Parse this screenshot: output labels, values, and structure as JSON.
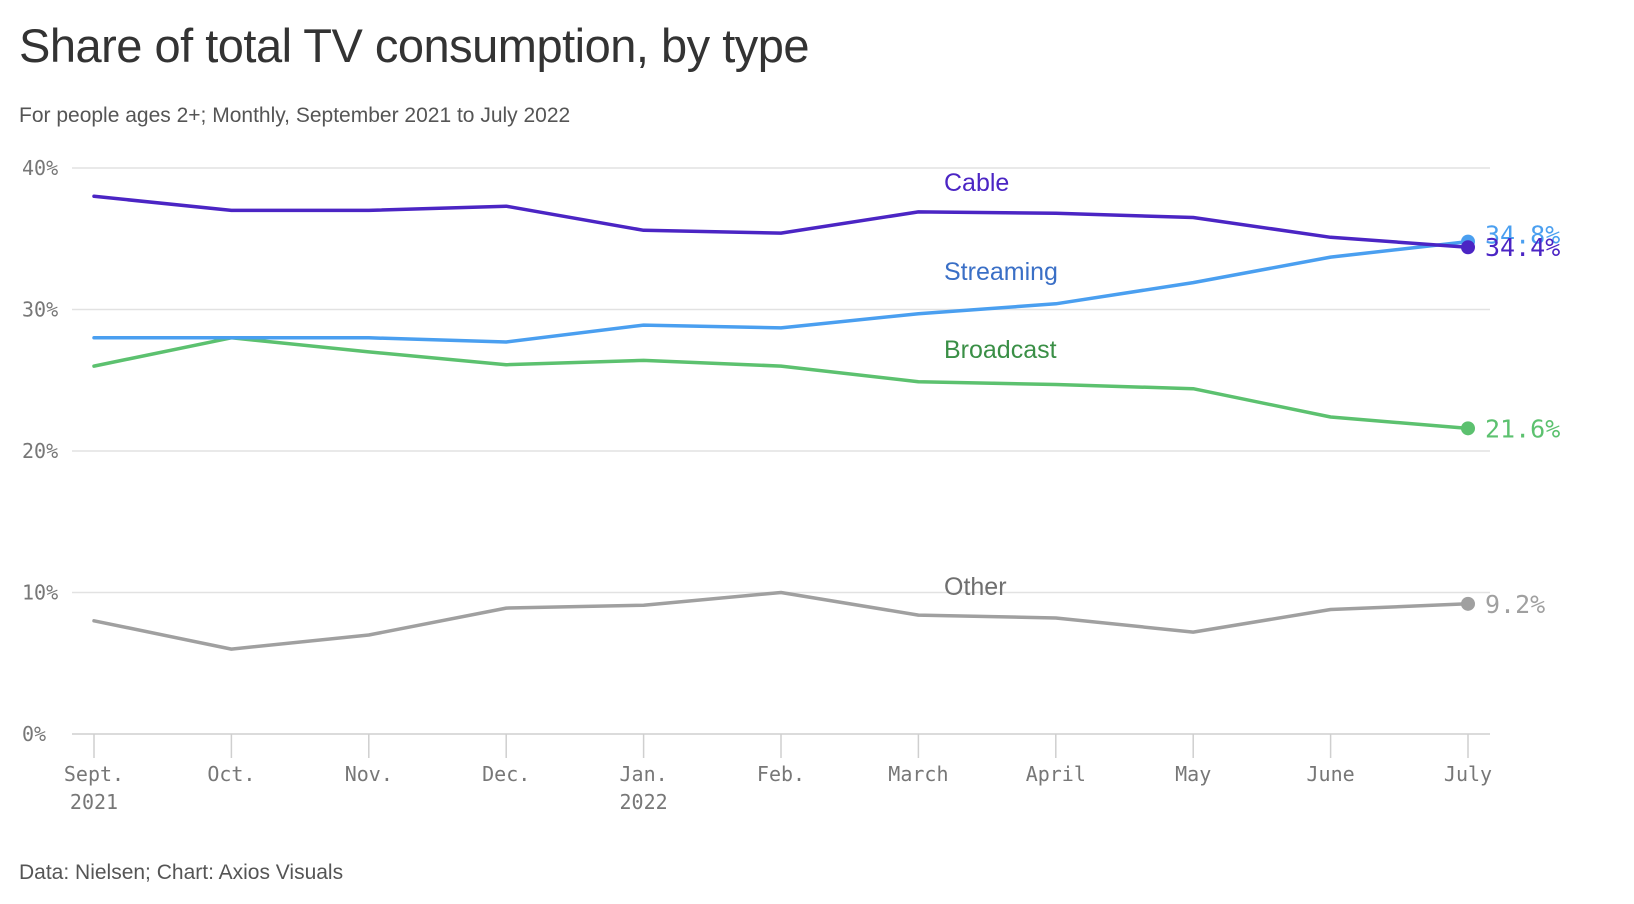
{
  "title": "Share of total TV consumption, by type",
  "subtitle": "For people ages 2+; Monthly, September 2021 to July 2022",
  "source": "Data: Nielsen; Chart: Axios Visuals",
  "chart_data": {
    "type": "line",
    "x": [
      "Sept. 2021",
      "Oct.",
      "Nov.",
      "Dec.",
      "Jan. 2022",
      "Feb.",
      "March",
      "April",
      "May",
      "June",
      "July"
    ],
    "x_tick_lines": [
      [
        "Sept.",
        "2021"
      ],
      [
        "Oct."
      ],
      [
        "Nov."
      ],
      [
        "Dec."
      ],
      [
        "Jan.",
        "2022"
      ],
      [
        "Feb."
      ],
      [
        "March"
      ],
      [
        "April"
      ],
      [
        "May"
      ],
      [
        "June"
      ],
      [
        "July"
      ]
    ],
    "ylim": [
      0,
      40
    ],
    "y_ticks": [
      0,
      10,
      20,
      30,
      40
    ],
    "y_tick_labels": [
      "0%",
      "10%",
      "20%",
      "30%",
      "40%"
    ],
    "grid": "horizontal",
    "series": [
      {
        "name": "Cable",
        "color": "#4b25c4",
        "label_color": "#4b25c4",
        "values": [
          38.0,
          37.0,
          37.0,
          37.3,
          35.6,
          35.4,
          36.9,
          36.8,
          36.5,
          35.1,
          34.4
        ],
        "end_label": "34.4%"
      },
      {
        "name": "Streaming",
        "color": "#4a9ff0",
        "label_color": "#3a6fc6",
        "values": [
          28.0,
          28.0,
          28.0,
          27.7,
          28.9,
          28.7,
          29.7,
          30.4,
          31.9,
          33.7,
          34.8
        ],
        "end_label": "34.8%"
      },
      {
        "name": "Broadcast",
        "color": "#5cc16f",
        "label_color": "#3a8f46",
        "values": [
          26.0,
          28.0,
          27.0,
          26.1,
          26.4,
          26.0,
          24.9,
          24.7,
          24.4,
          22.4,
          21.6
        ],
        "end_label": "21.6%"
      },
      {
        "name": "Other",
        "color": "#a0a0a0",
        "label_color": "#6f6f6f",
        "values": [
          8.0,
          6.0,
          7.0,
          8.9,
          9.1,
          10.0,
          8.4,
          8.2,
          7.2,
          8.8,
          9.2
        ],
        "end_label": "9.2%"
      }
    ]
  }
}
